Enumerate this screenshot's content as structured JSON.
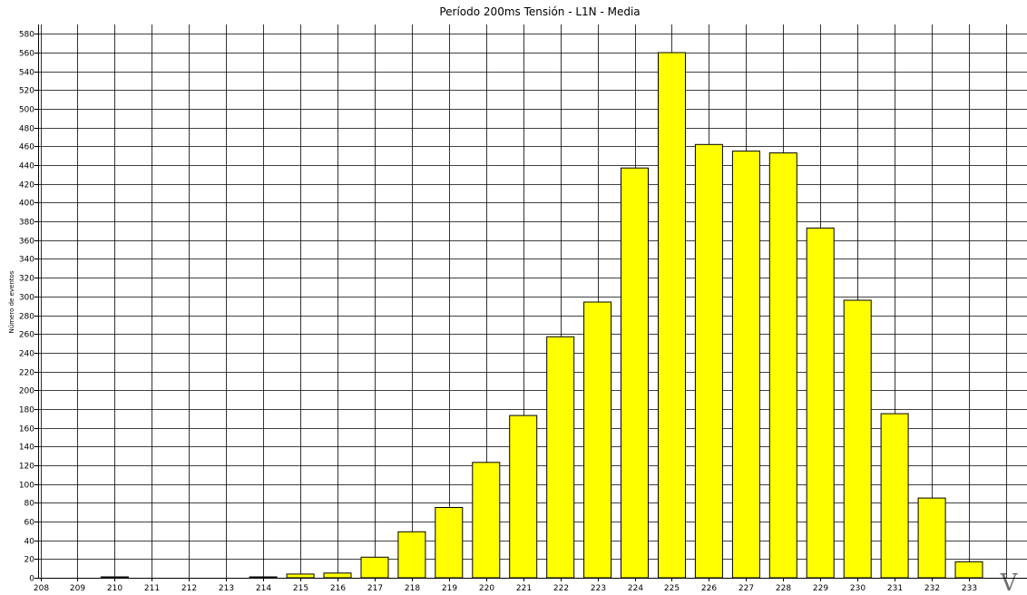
{
  "chart_data": {
    "type": "bar",
    "title": "Período 200ms Tensión  -  L1N  -  Media",
    "ylabel": "Número de eventos",
    "unit_label": "V",
    "x_ticks": [
      208,
      209,
      210,
      211,
      212,
      213,
      214,
      215,
      216,
      217,
      218,
      219,
      220,
      221,
      222,
      223,
      224,
      225,
      226,
      227,
      228,
      229,
      230,
      231,
      232,
      233
    ],
    "categories": [
      208,
      209,
      210,
      211,
      212,
      213,
      214,
      215,
      216,
      217,
      218,
      219,
      220,
      221,
      222,
      223,
      224,
      225,
      226,
      227,
      228,
      229,
      230,
      231,
      232,
      233
    ],
    "values": [
      0,
      0,
      1,
      0,
      0,
      0,
      1,
      4,
      5,
      22,
      49,
      75,
      123,
      173,
      257,
      294,
      437,
      560,
      462,
      455,
      453,
      373,
      296,
      175,
      85,
      17
    ],
    "ylim": [
      0,
      590
    ],
    "y_ticks": [
      0,
      20,
      40,
      60,
      80,
      100,
      120,
      140,
      160,
      180,
      200,
      220,
      240,
      260,
      280,
      300,
      320,
      340,
      360,
      380,
      400,
      420,
      440,
      460,
      480,
      500,
      520,
      540,
      560,
      580
    ],
    "grid": true,
    "bar_color": "#ffff00",
    "bar_edge_color": "#000000",
    "grid_color": "#000000"
  }
}
